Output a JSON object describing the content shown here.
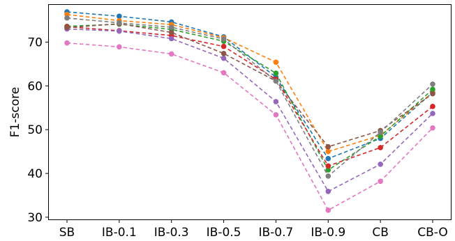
{
  "chart_data": {
    "type": "line",
    "title": "",
    "xlabel": "",
    "ylabel": "F1-score",
    "categories": [
      "SB",
      "IB-0.1",
      "IB-0.3",
      "IB-0.5",
      "IB-0.7",
      "IB-0.9",
      "CB",
      "CB-O"
    ],
    "ylim": [
      29.5,
      78.5
    ],
    "yticks": [
      30,
      40,
      50,
      60,
      70
    ],
    "grid": false,
    "legend": "none",
    "series": [
      {
        "color": "#1f77b4",
        "values": [
          76.9,
          75.9,
          74.6,
          71.2,
          62.0,
          43.4,
          48.0,
          58.5
        ]
      },
      {
        "color": "#ff7f0e",
        "values": [
          76.3,
          74.9,
          74.0,
          71.0,
          65.4,
          45.0,
          48.7,
          58.5
        ]
      },
      {
        "color": "#2ca02c",
        "values": [
          73.6,
          74.1,
          72.9,
          70.2,
          62.9,
          40.8,
          48.5,
          59.2
        ]
      },
      {
        "color": "#d62728",
        "values": [
          73.5,
          72.6,
          71.5,
          69.0,
          61.5,
          41.7,
          45.9,
          55.3
        ]
      },
      {
        "color": "#9467bd",
        "values": [
          73.0,
          72.5,
          70.8,
          66.3,
          56.4,
          35.9,
          42.1,
          53.7
        ]
      },
      {
        "color": "#8c564b",
        "values": [
          73.3,
          74.2,
          72.2,
          67.4,
          61.1,
          46.1,
          49.8,
          58.2
        ]
      },
      {
        "color": "#e377c2",
        "values": [
          69.8,
          68.9,
          67.3,
          63.0,
          53.4,
          31.6,
          38.2,
          50.4
        ]
      },
      {
        "color": "#7f7f7f",
        "values": [
          75.5,
          74.4,
          73.4,
          70.7,
          61.1,
          39.4,
          49.4,
          60.4
        ]
      }
    ]
  }
}
